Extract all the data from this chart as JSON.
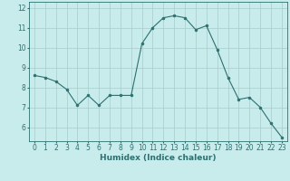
{
  "x": [
    0,
    1,
    2,
    3,
    4,
    5,
    6,
    7,
    8,
    9,
    10,
    11,
    12,
    13,
    14,
    15,
    16,
    17,
    18,
    19,
    20,
    21,
    22,
    23
  ],
  "y": [
    8.6,
    8.5,
    8.3,
    7.9,
    7.1,
    7.6,
    7.1,
    7.6,
    7.6,
    7.6,
    10.2,
    11.0,
    11.5,
    11.6,
    11.5,
    10.9,
    11.1,
    9.9,
    8.5,
    7.4,
    7.5,
    7.0,
    6.2,
    5.5
  ],
  "line_color": "#2d7070",
  "marker": "o",
  "marker_size": 2.0,
  "bg_color": "#c8ecec",
  "grid_color_major": "#a8cccc",
  "grid_color_minor": "#b8dcdc",
  "xlabel": "Humidex (Indice chaleur)",
  "xlim": [
    -0.5,
    23.5
  ],
  "ylim": [
    5.3,
    12.3
  ],
  "yticks": [
    6,
    7,
    8,
    9,
    10,
    11,
    12
  ],
  "xticks": [
    0,
    1,
    2,
    3,
    4,
    5,
    6,
    7,
    8,
    9,
    10,
    11,
    12,
    13,
    14,
    15,
    16,
    17,
    18,
    19,
    20,
    21,
    22,
    23
  ],
  "tick_color": "#2d7070",
  "label_color": "#2d7070",
  "tick_fontsize": 5.5,
  "xlabel_fontsize": 6.5
}
